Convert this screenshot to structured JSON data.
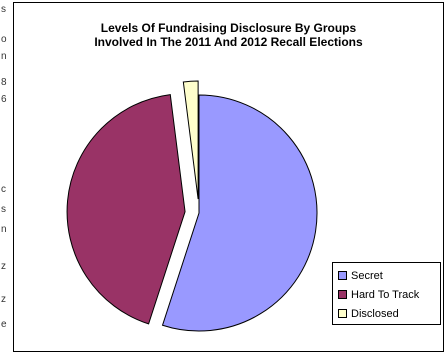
{
  "chart_data": {
    "type": "pie",
    "title_lines": [
      "Levels Of Fundraising Disclosure By Groups",
      "Involved In The 2011 And 2012 Recall Elections"
    ],
    "slices": [
      {
        "label": "Secret",
        "value": 55,
        "color": "#9999ff",
        "exploded": false
      },
      {
        "label": "Hard To Track",
        "value": 43,
        "color": "#993366",
        "exploded": true
      },
      {
        "label": "Disclosed",
        "value": 2,
        "color": "#ffffcc",
        "exploded": true
      }
    ],
    "legend_position": "right"
  },
  "left_strip_marks": [
    "s",
    "o",
    "n",
    "8",
    "6",
    "c",
    "s",
    "n",
    "z",
    "z",
    "e"
  ]
}
